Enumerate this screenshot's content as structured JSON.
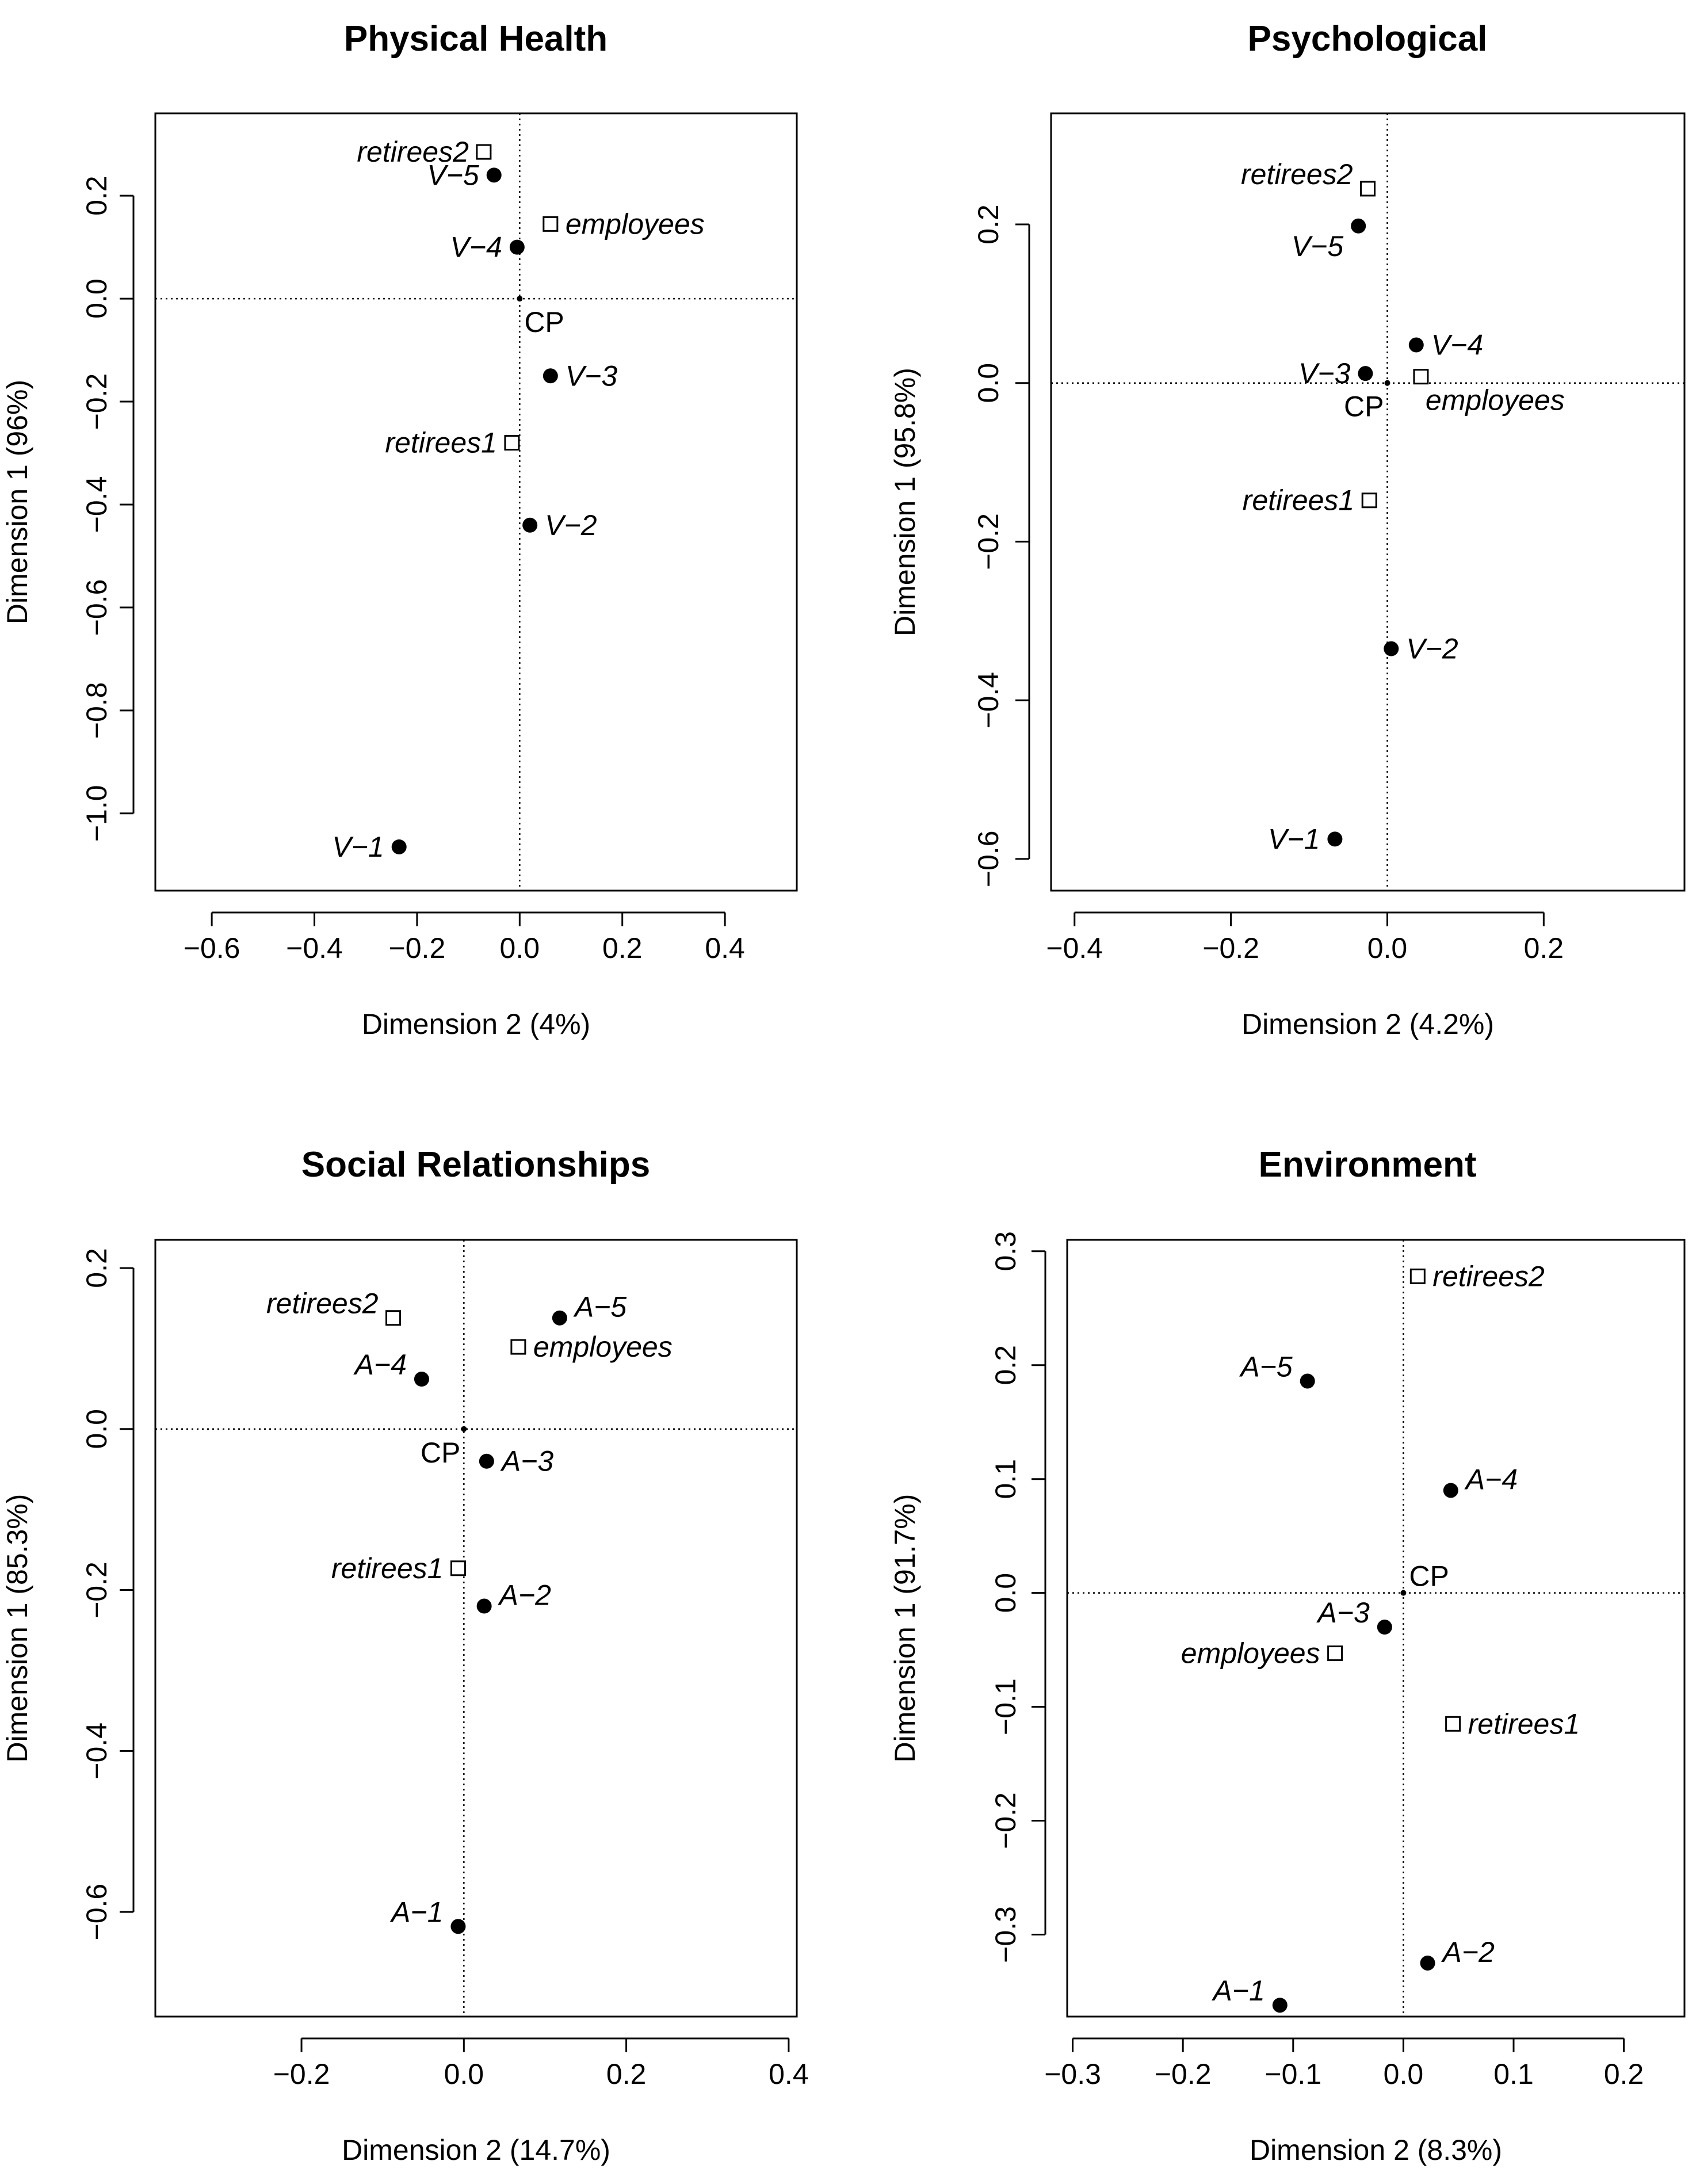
{
  "chart_data": [
    {
      "type": "scatter",
      "title": "Physical Health",
      "xlabel": "Dimension 2 (4%)",
      "ylabel": "Dimension 1 (96%)",
      "xlim": [
        -0.71,
        0.54
      ],
      "ylim": [
        -1.15,
        0.36
      ],
      "xticks": [
        -0.6,
        -0.4,
        -0.2,
        0.0,
        0.2,
        0.4
      ],
      "yticks": [
        -1.0,
        -0.8,
        -0.6,
        -0.4,
        -0.2,
        0.0,
        0.2
      ],
      "points": [
        {
          "label": "retirees2",
          "x": -0.07,
          "y": 0.285,
          "marker": "open-square",
          "label_pos": "left",
          "italic": true
        },
        {
          "label": "V−5",
          "x": -0.05,
          "y": 0.24,
          "marker": "filled-circle",
          "label_pos": "left",
          "italic": true
        },
        {
          "label": "employees",
          "x": 0.06,
          "y": 0.145,
          "marker": "open-square",
          "label_pos": "right",
          "italic": true
        },
        {
          "label": "V−4",
          "x": -0.005,
          "y": 0.1,
          "marker": "filled-circle",
          "label_pos": "left",
          "italic": true
        },
        {
          "label": "CP",
          "x": 0.0,
          "y": 0.0,
          "marker": "dot",
          "label_pos": "below-right",
          "italic": false
        },
        {
          "label": "V−3",
          "x": 0.06,
          "y": -0.15,
          "marker": "filled-circle",
          "label_pos": "right",
          "italic": true
        },
        {
          "label": "retirees1",
          "x": -0.015,
          "y": -0.28,
          "marker": "open-square",
          "label_pos": "left",
          "italic": true
        },
        {
          "label": "V−2",
          "x": 0.02,
          "y": -0.44,
          "marker": "filled-circle",
          "label_pos": "right",
          "italic": true
        },
        {
          "label": "V−1",
          "x": -0.235,
          "y": -1.065,
          "marker": "filled-circle",
          "label_pos": "left",
          "italic": true
        }
      ]
    },
    {
      "type": "scatter",
      "title": "Psychological",
      "xlabel": "Dimension 2 (4.2%)",
      "ylabel": "Dimension 1 (95.8%)",
      "xlim": [
        -0.43,
        0.38
      ],
      "ylim": [
        -0.64,
        0.34
      ],
      "xticks": [
        -0.4,
        -0.2,
        0.0,
        0.2
      ],
      "yticks": [
        -0.6,
        -0.4,
        -0.2,
        0.0,
        0.2
      ],
      "points": [
        {
          "label": "retirees2",
          "x": -0.025,
          "y": 0.245,
          "marker": "open-square",
          "label_pos": "left-up",
          "italic": true
        },
        {
          "label": "V−5",
          "x": -0.037,
          "y": 0.198,
          "marker": "filled-circle",
          "label_pos": "left-down",
          "italic": true
        },
        {
          "label": "V−4",
          "x": 0.037,
          "y": 0.048,
          "marker": "filled-circle",
          "label_pos": "right",
          "italic": true
        },
        {
          "label": "V−3",
          "x": -0.028,
          "y": 0.012,
          "marker": "filled-circle",
          "label_pos": "left",
          "italic": true
        },
        {
          "label": "employees",
          "x": 0.043,
          "y": 0.008,
          "marker": "open-square",
          "label_pos": "below-right",
          "italic": true
        },
        {
          "label": "CP",
          "x": 0.0,
          "y": 0.0,
          "marker": "dot",
          "label_pos": "below-left",
          "italic": false
        },
        {
          "label": "retirees1",
          "x": -0.023,
          "y": -0.148,
          "marker": "open-square",
          "label_pos": "left",
          "italic": true
        },
        {
          "label": "V−2",
          "x": 0.005,
          "y": -0.335,
          "marker": "filled-circle",
          "label_pos": "right",
          "italic": true
        },
        {
          "label": "V−1",
          "x": -0.067,
          "y": -0.575,
          "marker": "filled-circle",
          "label_pos": "left",
          "italic": true
        }
      ]
    },
    {
      "type": "scatter",
      "title": "Social Relationships",
      "xlabel": "Dimension 2 (14.7%)",
      "ylabel": "Dimension 1 (85.3%)",
      "xlim": [
        -0.38,
        0.41
      ],
      "ylim": [
        -0.73,
        0.235
      ],
      "xticks": [
        -0.2,
        0.0,
        0.2,
        0.4
      ],
      "yticks": [
        -0.6,
        -0.4,
        -0.2,
        0.0,
        0.2
      ],
      "points": [
        {
          "label": "retirees2",
          "x": -0.087,
          "y": 0.138,
          "marker": "open-square",
          "label_pos": "left-up",
          "italic": true
        },
        {
          "label": "A−5",
          "x": 0.118,
          "y": 0.138,
          "marker": "filled-circle",
          "label_pos": "right-up",
          "italic": true
        },
        {
          "label": "employees",
          "x": 0.067,
          "y": 0.102,
          "marker": "open-square",
          "label_pos": "right",
          "italic": true
        },
        {
          "label": "A−4",
          "x": -0.052,
          "y": 0.062,
          "marker": "filled-circle",
          "label_pos": "left-up",
          "italic": true
        },
        {
          "label": "CP",
          "x": 0.0,
          "y": 0.0,
          "marker": "dot",
          "label_pos": "below-left",
          "italic": false
        },
        {
          "label": "A−3",
          "x": 0.028,
          "y": -0.04,
          "marker": "filled-circle",
          "label_pos": "right",
          "italic": true
        },
        {
          "label": "retirees1",
          "x": -0.007,
          "y": -0.173,
          "marker": "open-square",
          "label_pos": "left",
          "italic": true
        },
        {
          "label": "A−2",
          "x": 0.025,
          "y": -0.22,
          "marker": "filled-circle",
          "label_pos": "right-up",
          "italic": true
        },
        {
          "label": "A−1",
          "x": -0.007,
          "y": -0.618,
          "marker": "filled-circle",
          "label_pos": "left-up",
          "italic": true
        }
      ]
    },
    {
      "type": "scatter",
      "title": "Environment",
      "xlabel": "Dimension 2 (8.3%)",
      "ylabel": "Dimension 1 (91.7%)",
      "xlim": [
        -0.305,
        0.255
      ],
      "ylim": [
        -0.372,
        0.31
      ],
      "xticks": [
        -0.3,
        -0.2,
        -0.1,
        0.0,
        0.1,
        0.2
      ],
      "yticks": [
        -0.3,
        -0.2,
        -0.1,
        0.0,
        0.1,
        0.2,
        0.3
      ],
      "points": [
        {
          "label": "retirees2",
          "x": 0.013,
          "y": 0.278,
          "marker": "open-square",
          "label_pos": "right",
          "italic": true
        },
        {
          "label": "A−5",
          "x": -0.087,
          "y": 0.186,
          "marker": "filled-circle",
          "label_pos": "left-up",
          "italic": true
        },
        {
          "label": "A−4",
          "x": 0.043,
          "y": 0.09,
          "marker": "filled-circle",
          "label_pos": "right-up",
          "italic": true
        },
        {
          "label": "CP",
          "x": 0.0,
          "y": 0.0,
          "marker": "dot",
          "label_pos": "above-right",
          "italic": false
        },
        {
          "label": "A−3",
          "x": -0.017,
          "y": -0.03,
          "marker": "filled-circle",
          "label_pos": "left-up",
          "italic": true
        },
        {
          "label": "employees",
          "x": -0.062,
          "y": -0.053,
          "marker": "open-square",
          "label_pos": "left",
          "italic": true
        },
        {
          "label": "retirees1",
          "x": 0.045,
          "y": -0.115,
          "marker": "open-square",
          "label_pos": "right",
          "italic": true
        },
        {
          "label": "A−2",
          "x": 0.022,
          "y": -0.325,
          "marker": "filled-circle",
          "label_pos": "right-up",
          "italic": true
        },
        {
          "label": "A−1",
          "x": -0.112,
          "y": -0.362,
          "marker": "filled-circle",
          "label_pos": "left-up",
          "italic": true
        }
      ]
    }
  ]
}
